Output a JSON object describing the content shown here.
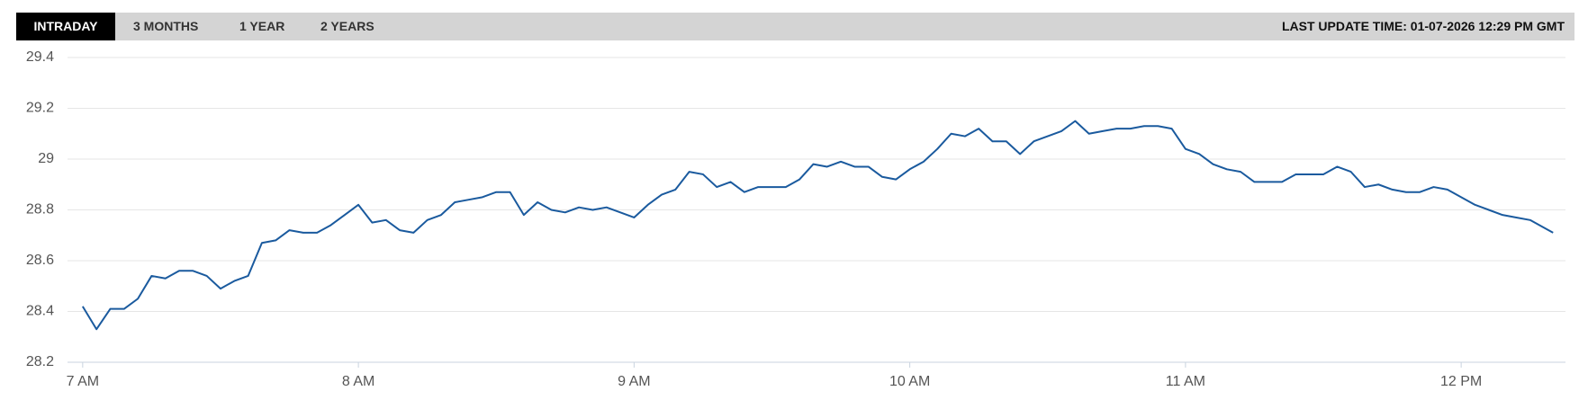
{
  "tabs": [
    "INTRADAY",
    "3 MONTHS",
    "1 YEAR",
    "2 YEARS"
  ],
  "last_update": "LAST UPDATE TIME: 01-07-2026 12:29 PM GMT",
  "chart_data": {
    "type": "line",
    "x": [
      420,
      423,
      426,
      429,
      432,
      435,
      438,
      441,
      444,
      447,
      450,
      453,
      456,
      459,
      462,
      465,
      468,
      471,
      474,
      477,
      480,
      483,
      486,
      489,
      492,
      495,
      498,
      501,
      504,
      507,
      510,
      513,
      516,
      519,
      522,
      525,
      528,
      531,
      534,
      537,
      540,
      543,
      546,
      549,
      552,
      555,
      558,
      561,
      564,
      567,
      570,
      573,
      576,
      579,
      582,
      585,
      588,
      591,
      594,
      597,
      600,
      603,
      606,
      609,
      612,
      615,
      618,
      621,
      624,
      627,
      630,
      633,
      636,
      639,
      642,
      645,
      648,
      651,
      654,
      657,
      660,
      663,
      666,
      669,
      672,
      675,
      678,
      681,
      684,
      687,
      690,
      693,
      696,
      699,
      702,
      705,
      708,
      711,
      714,
      717,
      720,
      723,
      726,
      729,
      732,
      735,
      738,
      740
    ],
    "series": [
      {
        "color": "#1a5a9e",
        "values": [
          28.42,
          28.33,
          28.41,
          28.41,
          28.45,
          28.54,
          28.53,
          28.56,
          28.56,
          28.54,
          28.49,
          28.52,
          28.54,
          28.67,
          28.68,
          28.72,
          28.71,
          28.71,
          28.74,
          28.78,
          28.82,
          28.75,
          28.76,
          28.72,
          28.71,
          28.76,
          28.78,
          28.83,
          28.84,
          28.85,
          28.87,
          28.87,
          28.78,
          28.83,
          28.8,
          28.79,
          28.81,
          28.8,
          28.81,
          28.79,
          28.77,
          28.82,
          28.86,
          28.88,
          28.95,
          28.94,
          28.89,
          28.91,
          28.87,
          28.89,
          28.89,
          28.89,
          28.92,
          28.98,
          28.97,
          28.99,
          28.97,
          28.97,
          28.93,
          28.92,
          28.96,
          28.99,
          29.04,
          29.1,
          29.09,
          29.12,
          29.07,
          29.07,
          29.02,
          29.07,
          29.09,
          29.11,
          29.15,
          29.1,
          29.11,
          29.12,
          29.12,
          29.13,
          29.13,
          29.12,
          29.04,
          29.02,
          28.98,
          28.96,
          28.95,
          28.91,
          28.91,
          28.91,
          28.94,
          28.94,
          28.94,
          28.97,
          28.95,
          28.89,
          28.9,
          28.88,
          28.87,
          28.87,
          28.89,
          28.88,
          28.85,
          28.82,
          28.8,
          28.78,
          28.77,
          28.76,
          28.73,
          28.71
        ]
      }
    ],
    "xlim": [
      416.7,
      742.7
    ],
    "xticks": [
      {
        "value": 420,
        "label": "7 AM"
      },
      {
        "value": 480,
        "label": "8 AM"
      },
      {
        "value": 540,
        "label": "9 AM"
      },
      {
        "value": 600,
        "label": "10 AM"
      },
      {
        "value": 660,
        "label": "11 AM"
      },
      {
        "value": 720,
        "label": "12 PM"
      }
    ],
    "ylim": [
      28.2,
      29.4
    ],
    "yticks": [
      28.2,
      28.4,
      28.6,
      28.8,
      29,
      29.2,
      29.4
    ],
    "grid": true
  }
}
